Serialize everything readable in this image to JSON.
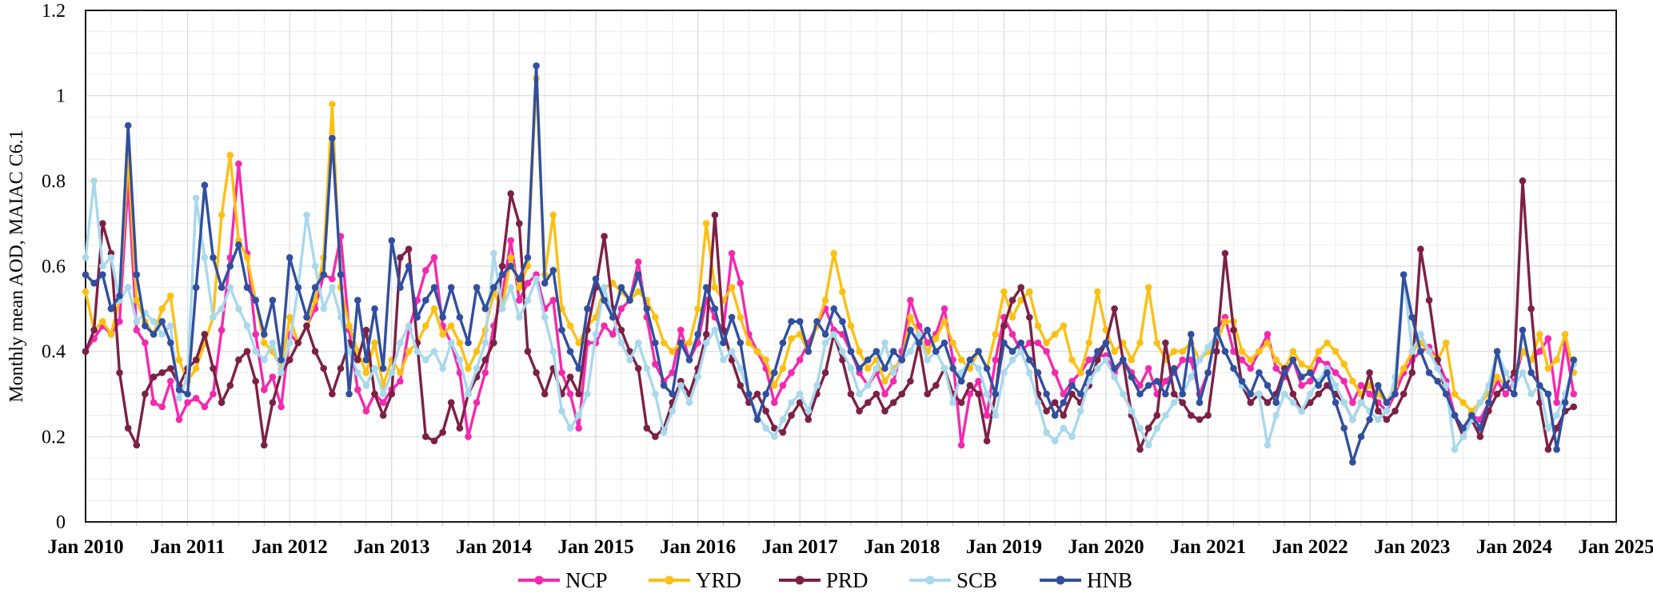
{
  "chart_data": {
    "type": "line",
    "title": "",
    "ylabel": "Monthly mean AOD, MAIAC C6.1",
    "xlabel": "",
    "ylim": [
      0,
      1.2
    ],
    "yticks": [
      0,
      0.2,
      0.4,
      0.6,
      0.8,
      1,
      1.2
    ],
    "ytick_labels": [
      "0",
      "0.2",
      "0.4",
      "0.6",
      "0.8",
      "1",
      "1.2"
    ],
    "y_minor_step": 0.05,
    "x_start_month": "Jan 2010",
    "x_end_axis": "Jan 2025",
    "x_months_total": 180,
    "x_minor_step_months": 3,
    "xtick_labels": [
      "Jan 2010",
      "Jan 2011",
      "Jan 2012",
      "Jan 2013",
      "Jan 2014",
      "Jan 2015",
      "Jan 2016",
      "Jan 2017",
      "Jan 2018",
      "Jan 2019",
      "Jan 2020",
      "Jan 2021",
      "Jan 2022",
      "Jan 2023",
      "Jan 2024",
      "Jan 2025"
    ],
    "grid": {
      "major_color": "#d9d9d9",
      "minor_color": "#ececec",
      "border_color": "#1a1a1a"
    },
    "legend": {
      "position": "bottom-center",
      "marker": "line-with-dot"
    },
    "series": [
      {
        "name": "NCP",
        "color": "#f429ae",
        "values": [
          0.4,
          0.43,
          0.46,
          0.44,
          0.47,
          0.8,
          0.45,
          0.42,
          0.28,
          0.27,
          0.33,
          0.24,
          0.28,
          0.29,
          0.27,
          0.3,
          0.45,
          0.62,
          0.84,
          0.63,
          0.44,
          0.31,
          0.34,
          0.27,
          0.44,
          0.42,
          0.46,
          0.5,
          0.58,
          0.57,
          0.67,
          0.45,
          0.31,
          0.26,
          0.3,
          0.28,
          0.31,
          0.33,
          0.45,
          0.52,
          0.59,
          0.62,
          0.46,
          0.42,
          0.35,
          0.2,
          0.28,
          0.35,
          0.46,
          0.53,
          0.66,
          0.52,
          0.56,
          0.58,
          0.5,
          0.52,
          0.35,
          0.3,
          0.22,
          0.42,
          0.42,
          0.46,
          0.44,
          0.5,
          0.52,
          0.61,
          0.48,
          0.37,
          0.33,
          0.35,
          0.45,
          0.38,
          0.42,
          0.52,
          0.48,
          0.45,
          0.63,
          0.56,
          0.44,
          0.4,
          0.36,
          0.28,
          0.32,
          0.35,
          0.38,
          0.42,
          0.46,
          0.5,
          0.45,
          0.44,
          0.4,
          0.35,
          0.32,
          0.35,
          0.3,
          0.33,
          0.4,
          0.52,
          0.46,
          0.42,
          0.44,
          0.5,
          0.38,
          0.18,
          0.3,
          0.33,
          0.25,
          0.38,
          0.48,
          0.44,
          0.4,
          0.42,
          0.42,
          0.4,
          0.35,
          0.3,
          0.33,
          0.35,
          0.38,
          0.39,
          0.39,
          0.35,
          0.38,
          0.35,
          0.32,
          0.36,
          0.3,
          0.33,
          0.35,
          0.38,
          0.38,
          0.3,
          0.35,
          0.45,
          0.48,
          0.4,
          0.38,
          0.36,
          0.4,
          0.44,
          0.36,
          0.34,
          0.38,
          0.32,
          0.33,
          0.38,
          0.37,
          0.35,
          0.33,
          0.28,
          0.32,
          0.3,
          0.28,
          0.26,
          0.3,
          0.35,
          0.38,
          0.4,
          0.41,
          0.38,
          0.33,
          0.25,
          0.22,
          0.25,
          0.24,
          0.28,
          0.33,
          0.3,
          0.33,
          0.4,
          0.38,
          0.4,
          0.43,
          0.28,
          0.42,
          0.3
        ]
      },
      {
        "name": "YRD",
        "color": "#fdbf12",
        "values": [
          0.54,
          0.45,
          0.47,
          0.44,
          0.52,
          0.86,
          0.52,
          0.47,
          0.44,
          0.5,
          0.53,
          0.38,
          0.33,
          0.36,
          0.42,
          0.48,
          0.72,
          0.86,
          0.66,
          0.62,
          0.52,
          0.42,
          0.4,
          0.36,
          0.48,
          0.42,
          0.46,
          0.52,
          0.62,
          0.98,
          0.55,
          0.46,
          0.4,
          0.35,
          0.42,
          0.32,
          0.38,
          0.35,
          0.4,
          0.42,
          0.46,
          0.5,
          0.44,
          0.46,
          0.42,
          0.36,
          0.4,
          0.45,
          0.54,
          0.5,
          0.62,
          0.55,
          0.6,
          1.04,
          0.58,
          0.72,
          0.5,
          0.46,
          0.42,
          0.46,
          0.48,
          0.55,
          0.56,
          0.54,
          0.52,
          0.54,
          0.52,
          0.48,
          0.42,
          0.4,
          0.42,
          0.42,
          0.5,
          0.7,
          0.55,
          0.52,
          0.55,
          0.48,
          0.42,
          0.4,
          0.38,
          0.32,
          0.36,
          0.43,
          0.44,
          0.4,
          0.46,
          0.52,
          0.63,
          0.54,
          0.46,
          0.4,
          0.36,
          0.38,
          0.33,
          0.36,
          0.38,
          0.48,
          0.44,
          0.4,
          0.43,
          0.47,
          0.42,
          0.38,
          0.36,
          0.4,
          0.36,
          0.44,
          0.54,
          0.48,
          0.52,
          0.54,
          0.46,
          0.42,
          0.44,
          0.46,
          0.38,
          0.35,
          0.42,
          0.54,
          0.45,
          0.4,
          0.42,
          0.38,
          0.42,
          0.55,
          0.42,
          0.38,
          0.4,
          0.4,
          0.42,
          0.38,
          0.4,
          0.42,
          0.47,
          0.47,
          0.4,
          0.38,
          0.4,
          0.42,
          0.38,
          0.36,
          0.4,
          0.37,
          0.36,
          0.4,
          0.42,
          0.4,
          0.37,
          0.33,
          0.3,
          0.32,
          0.3,
          0.28,
          0.32,
          0.36,
          0.4,
          0.42,
          0.4,
          0.38,
          0.42,
          0.3,
          0.28,
          0.26,
          0.28,
          0.3,
          0.34,
          0.32,
          0.35,
          0.4,
          0.38,
          0.44,
          0.36,
          0.38,
          0.44,
          0.35
        ]
      },
      {
        "name": "PRD",
        "color": "#7c2145",
        "values": [
          0.4,
          0.45,
          0.7,
          0.63,
          0.35,
          0.22,
          0.18,
          0.3,
          0.34,
          0.35,
          0.36,
          0.32,
          0.36,
          0.38,
          0.44,
          0.36,
          0.28,
          0.32,
          0.38,
          0.4,
          0.33,
          0.18,
          0.28,
          0.35,
          0.38,
          0.42,
          0.46,
          0.4,
          0.36,
          0.3,
          0.36,
          0.42,
          0.38,
          0.45,
          0.3,
          0.25,
          0.3,
          0.62,
          0.64,
          0.42,
          0.2,
          0.19,
          0.21,
          0.28,
          0.22,
          0.3,
          0.34,
          0.38,
          0.42,
          0.6,
          0.77,
          0.7,
          0.4,
          0.35,
          0.3,
          0.36,
          0.3,
          0.34,
          0.3,
          0.45,
          0.55,
          0.67,
          0.5,
          0.45,
          0.4,
          0.36,
          0.22,
          0.2,
          0.22,
          0.28,
          0.33,
          0.3,
          0.36,
          0.44,
          0.72,
          0.45,
          0.38,
          0.32,
          0.28,
          0.3,
          0.26,
          0.22,
          0.21,
          0.25,
          0.28,
          0.24,
          0.3,
          0.35,
          0.44,
          0.38,
          0.3,
          0.26,
          0.28,
          0.3,
          0.26,
          0.28,
          0.3,
          0.33,
          0.42,
          0.3,
          0.32,
          0.36,
          0.3,
          0.28,
          0.32,
          0.3,
          0.19,
          0.3,
          0.46,
          0.52,
          0.55,
          0.48,
          0.3,
          0.26,
          0.28,
          0.25,
          0.3,
          0.28,
          0.32,
          0.38,
          0.42,
          0.5,
          0.38,
          0.25,
          0.17,
          0.22,
          0.25,
          0.42,
          0.3,
          0.28,
          0.25,
          0.24,
          0.25,
          0.4,
          0.63,
          0.45,
          0.32,
          0.28,
          0.3,
          0.28,
          0.3,
          0.36,
          0.3,
          0.26,
          0.28,
          0.3,
          0.32,
          0.3,
          0.28,
          0.24,
          0.28,
          0.35,
          0.26,
          0.24,
          0.26,
          0.3,
          0.35,
          0.64,
          0.52,
          0.38,
          0.3,
          0.25,
          0.2,
          0.24,
          0.2,
          0.26,
          0.3,
          0.32,
          0.35,
          0.8,
          0.5,
          0.28,
          0.17,
          0.22,
          0.26,
          0.27
        ]
      },
      {
        "name": "SCB",
        "color": "#a8d8ec",
        "values": [
          0.62,
          0.8,
          0.6,
          0.62,
          0.52,
          0.55,
          0.47,
          0.49,
          0.47,
          0.44,
          0.46,
          0.29,
          0.34,
          0.76,
          0.62,
          0.48,
          0.5,
          0.55,
          0.5,
          0.46,
          0.4,
          0.38,
          0.42,
          0.35,
          0.42,
          0.55,
          0.72,
          0.6,
          0.5,
          0.55,
          0.48,
          0.4,
          0.35,
          0.32,
          0.36,
          0.3,
          0.35,
          0.42,
          0.46,
          0.4,
          0.38,
          0.4,
          0.36,
          0.42,
          0.38,
          0.3,
          0.36,
          0.42,
          0.63,
          0.5,
          0.55,
          0.48,
          0.52,
          0.57,
          0.48,
          0.4,
          0.26,
          0.22,
          0.25,
          0.3,
          0.44,
          0.55,
          0.48,
          0.42,
          0.38,
          0.42,
          0.36,
          0.3,
          0.21,
          0.26,
          0.32,
          0.28,
          0.34,
          0.42,
          0.45,
          0.38,
          0.4,
          0.36,
          0.3,
          0.25,
          0.22,
          0.2,
          0.24,
          0.28,
          0.3,
          0.26,
          0.32,
          0.42,
          0.44,
          0.4,
          0.36,
          0.3,
          0.32,
          0.36,
          0.42,
          0.35,
          0.38,
          0.4,
          0.44,
          0.38,
          0.4,
          0.36,
          0.28,
          0.35,
          0.38,
          0.36,
          0.3,
          0.25,
          0.35,
          0.38,
          0.4,
          0.35,
          0.28,
          0.21,
          0.19,
          0.22,
          0.2,
          0.26,
          0.33,
          0.36,
          0.38,
          0.34,
          0.3,
          0.26,
          0.22,
          0.18,
          0.22,
          0.25,
          0.28,
          0.3,
          0.34,
          0.38,
          0.41,
          0.44,
          0.4,
          0.36,
          0.32,
          0.3,
          0.3,
          0.18,
          0.25,
          0.3,
          0.28,
          0.26,
          0.3,
          0.33,
          0.36,
          0.32,
          0.28,
          0.24,
          0.28,
          0.26,
          0.24,
          0.26,
          0.34,
          0.58,
          0.4,
          0.44,
          0.4,
          0.36,
          0.32,
          0.17,
          0.2,
          0.24,
          0.28,
          0.32,
          0.4,
          0.35,
          0.32,
          0.35,
          0.3,
          0.32,
          0.22,
          0.25,
          0.3,
          0.37
        ]
      },
      {
        "name": "HNB",
        "color": "#314f9f",
        "values": [
          0.58,
          0.56,
          0.58,
          0.5,
          0.53,
          0.93,
          0.58,
          0.46,
          0.44,
          0.47,
          0.42,
          0.31,
          0.3,
          0.55,
          0.79,
          0.62,
          0.55,
          0.6,
          0.65,
          0.55,
          0.52,
          0.44,
          0.52,
          0.38,
          0.62,
          0.55,
          0.48,
          0.55,
          0.58,
          0.9,
          0.58,
          0.3,
          0.52,
          0.38,
          0.5,
          0.36,
          0.66,
          0.55,
          0.6,
          0.48,
          0.52,
          0.55,
          0.48,
          0.55,
          0.48,
          0.42,
          0.55,
          0.5,
          0.55,
          0.58,
          0.6,
          0.57,
          0.62,
          1.07,
          0.56,
          0.59,
          0.45,
          0.4,
          0.36,
          0.5,
          0.57,
          0.52,
          0.48,
          0.55,
          0.52,
          0.58,
          0.5,
          0.42,
          0.32,
          0.3,
          0.42,
          0.38,
          0.44,
          0.55,
          0.5,
          0.42,
          0.48,
          0.42,
          0.3,
          0.24,
          0.3,
          0.35,
          0.42,
          0.47,
          0.47,
          0.4,
          0.47,
          0.44,
          0.5,
          0.47,
          0.4,
          0.36,
          0.38,
          0.4,
          0.36,
          0.4,
          0.38,
          0.45,
          0.42,
          0.45,
          0.4,
          0.42,
          0.36,
          0.33,
          0.38,
          0.4,
          0.36,
          0.3,
          0.42,
          0.4,
          0.42,
          0.38,
          0.35,
          0.3,
          0.25,
          0.28,
          0.32,
          0.3,
          0.35,
          0.4,
          0.42,
          0.36,
          0.38,
          0.34,
          0.3,
          0.32,
          0.33,
          0.3,
          0.36,
          0.3,
          0.44,
          0.28,
          0.35,
          0.45,
          0.4,
          0.36,
          0.33,
          0.3,
          0.35,
          0.32,
          0.28,
          0.35,
          0.38,
          0.34,
          0.35,
          0.32,
          0.35,
          0.28,
          0.22,
          0.14,
          0.2,
          0.24,
          0.32,
          0.28,
          0.3,
          0.58,
          0.48,
          0.4,
          0.35,
          0.33,
          0.3,
          0.25,
          0.22,
          0.25,
          0.22,
          0.28,
          0.4,
          0.32,
          0.3,
          0.45,
          0.35,
          0.32,
          0.3,
          0.17,
          0.28,
          0.38
        ]
      }
    ]
  }
}
